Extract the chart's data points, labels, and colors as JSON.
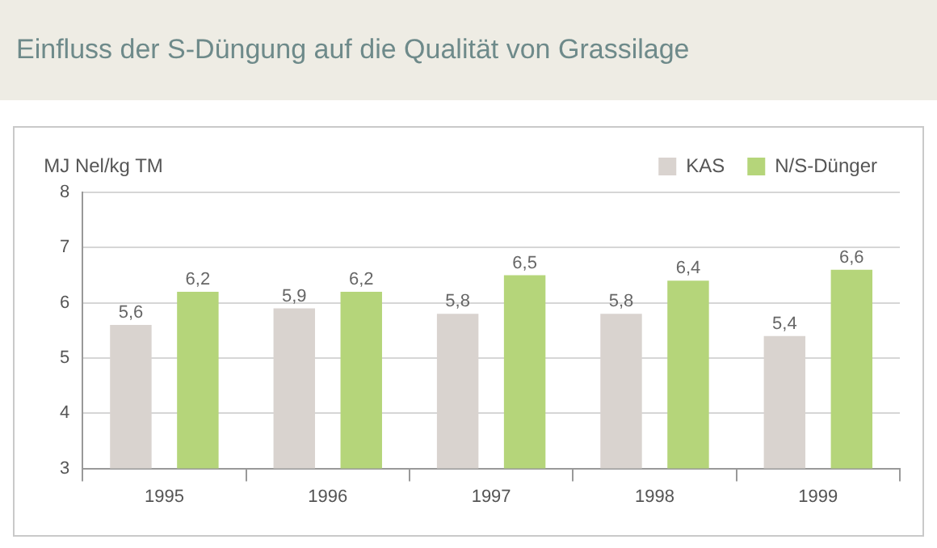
{
  "chart_data": {
    "type": "bar",
    "title": "Einfluss der S-Düngung auf die Qualität von Grassilage",
    "ylabel": "MJ Nel/kg TM",
    "categories": [
      "1995",
      "1996",
      "1997",
      "1998",
      "1999"
    ],
    "series": [
      {
        "name": "KAS",
        "color": "#d9d3cf",
        "values": [
          5.6,
          5.9,
          5.8,
          5.8,
          5.4
        ],
        "value_labels": [
          "5,6",
          "5,9",
          "5,8",
          "5,8",
          "5,4"
        ]
      },
      {
        "name": "N/S-Dünger",
        "color": "#b5d57a",
        "values": [
          6.2,
          6.2,
          6.5,
          6.4,
          6.6
        ],
        "value_labels": [
          "6,2",
          "6,2",
          "6,5",
          "6,4",
          "6,6"
        ]
      }
    ],
    "ylim": [
      3,
      8
    ],
    "yticks": [
      3,
      4,
      5,
      6,
      7,
      8
    ],
    "grid": "y",
    "legend": "top right"
  }
}
